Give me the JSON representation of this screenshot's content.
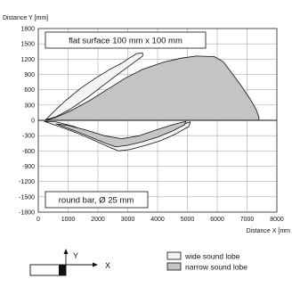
{
  "chart_data": {
    "type": "area",
    "xlabel": "Distance X [mm",
    "ylabel": "Distance Y [mm]",
    "xlim": [
      0,
      8000
    ],
    "ylim": [
      -1800,
      1800
    ],
    "xticks": [
      "0",
      "1000",
      "2000",
      "3000",
      "4000",
      "5000",
      "6000",
      "7000",
      "8000"
    ],
    "yticks": [
      "1800",
      "1500",
      "1200",
      "900",
      "600",
      "300",
      "0",
      "-300",
      "-600",
      "-900",
      "-1200",
      "-1500",
      "-1800"
    ],
    "grid": true,
    "annotations": {
      "top": "flat surface 100 mm x 100 mm",
      "bottom": "round bar, Ø 25 mm"
    },
    "legend": {
      "position": "bottom-right",
      "entries": [
        {
          "label": "wide sound lobe",
          "color": "#f4f4f4"
        },
        {
          "label": "narrow sound lobe",
          "color": "#c4c4c4"
        }
      ]
    },
    "series": [
      {
        "name": "wide sound lobe",
        "region": "flat-surface",
        "color": "#f4f4f4",
        "points": [
          [
            250,
            10
          ],
          [
            500,
            160
          ],
          [
            900,
            380
          ],
          [
            1400,
            620
          ],
          [
            1900,
            820
          ],
          [
            2400,
            1000
          ],
          [
            2800,
            1120
          ],
          [
            3000,
            1200
          ],
          [
            3300,
            1310
          ],
          [
            3500,
            1320
          ],
          [
            3500,
            1260
          ],
          [
            3200,
            1130
          ],
          [
            2800,
            960
          ],
          [
            2300,
            740
          ],
          [
            1700,
            470
          ],
          [
            1100,
            230
          ],
          [
            600,
            70
          ],
          [
            250,
            10
          ]
        ]
      },
      {
        "name": "narrow sound lobe",
        "region": "flat-surface",
        "color": "#c4c4c4",
        "points": [
          [
            250,
            0
          ],
          [
            600,
            60
          ],
          [
            1100,
            190
          ],
          [
            1700,
            380
          ],
          [
            2300,
            600
          ],
          [
            2900,
            820
          ],
          [
            3500,
            1000
          ],
          [
            4200,
            1140
          ],
          [
            4800,
            1220
          ],
          [
            5300,
            1260
          ],
          [
            5900,
            1250
          ],
          [
            6200,
            1150
          ],
          [
            6500,
            920
          ],
          [
            6800,
            680
          ],
          [
            7100,
            420
          ],
          [
            7300,
            220
          ],
          [
            7400,
            60
          ],
          [
            7400,
            0
          ]
        ]
      },
      {
        "name": "wide sound lobe",
        "region": "round-bar",
        "color": "#f4f4f4",
        "points": [
          [
            200,
            -20
          ],
          [
            700,
            -120
          ],
          [
            1300,
            -250
          ],
          [
            1900,
            -400
          ],
          [
            2400,
            -530
          ],
          [
            2700,
            -600
          ],
          [
            3100,
            -570
          ],
          [
            3600,
            -490
          ],
          [
            4100,
            -400
          ],
          [
            4600,
            -270
          ],
          [
            5050,
            -120
          ],
          [
            5100,
            -30
          ],
          [
            4800,
            -90
          ],
          [
            4200,
            -230
          ],
          [
            3600,
            -380
          ],
          [
            3000,
            -470
          ],
          [
            2500,
            -420
          ],
          [
            1900,
            -280
          ],
          [
            1200,
            -120
          ],
          [
            600,
            -30
          ],
          [
            200,
            -20
          ]
        ]
      },
      {
        "name": "narrow sound lobe",
        "region": "round-bar",
        "color": "#c4c4c4",
        "points": [
          [
            600,
            -70
          ],
          [
            1200,
            -200
          ],
          [
            1800,
            -340
          ],
          [
            2300,
            -460
          ],
          [
            2600,
            -520
          ],
          [
            3000,
            -490
          ],
          [
            3500,
            -420
          ],
          [
            4000,
            -330
          ],
          [
            4500,
            -210
          ],
          [
            4900,
            -90
          ],
          [
            4950,
            -20
          ],
          [
            4600,
            -70
          ],
          [
            4000,
            -180
          ],
          [
            3400,
            -300
          ],
          [
            2800,
            -360
          ],
          [
            2200,
            -300
          ],
          [
            1600,
            -190
          ],
          [
            1000,
            -100
          ],
          [
            600,
            -70
          ]
        ]
      }
    ]
  }
}
